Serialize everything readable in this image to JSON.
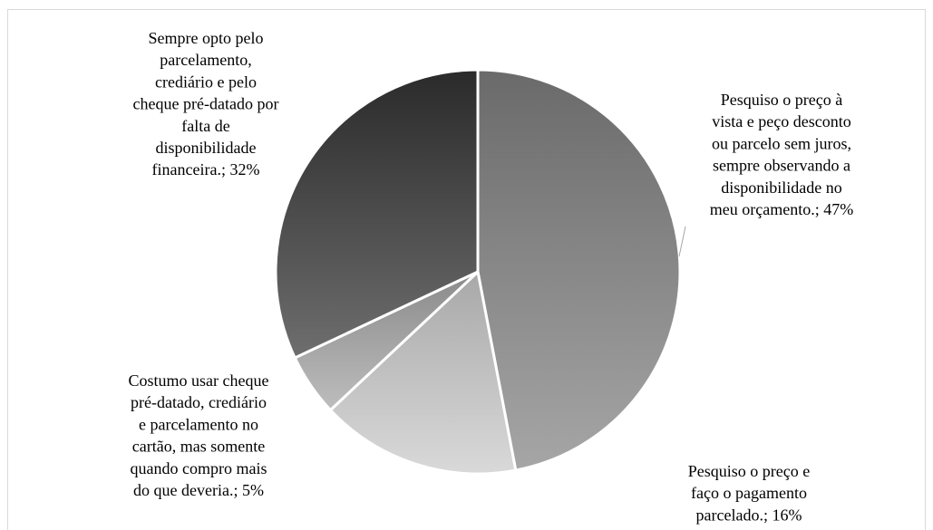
{
  "chart_data": {
    "type": "pie",
    "title": "",
    "slices": [
      {
        "label": "Pesquiso o preço à vista e peço desconto ou parcelo sem juros, sempre observando a disponibilidade no meu orçamento.",
        "value": 47,
        "value_label": "47%",
        "color_top": "#6a6a6a",
        "color_bottom": "#a6a6a6"
      },
      {
        "label": "Pesquiso o preço e faço o pagamento parcelado.",
        "value": 16,
        "value_label": "16%",
        "color_top": "#a8a8a8",
        "color_bottom": "#d9d9d9"
      },
      {
        "label": "Costumo usar cheque pré-datado, crediário e parcelamento no cartão, mas somente quando compro mais do que deveria.",
        "value": 5,
        "value_label": "5%",
        "color_top": "#8a8a8a",
        "color_bottom": "#bdbdbd"
      },
      {
        "label": "Sempre opto pelo parcelamento, crediário e pelo cheque pré-datado por falta de disponibilidade financeira.",
        "value": 32,
        "value_label": "32%",
        "color_top": "#2a2a2a",
        "color_bottom": "#6e6e6e"
      }
    ],
    "data_labels": [
      [
        "Pesquiso o preço à",
        "vista e peço desconto",
        "ou parcelo sem juros,",
        "sempre observando a",
        "disponibilidade no",
        "meu orçamento.; 47%"
      ],
      [
        "Pesquiso o preço e",
        "faço o pagamento",
        "parcelado.; 16%"
      ],
      [
        "Costumo usar cheque",
        "pré-datado, crediário",
        "e parcelamento no",
        "cartão, mas somente",
        "quando compro mais",
        "do que deveria.; 5%"
      ],
      [
        "Sempre opto pelo",
        "parcelamento,",
        "crediário e pelo",
        "cheque pré-datado por",
        "falta de",
        "disponibilidade",
        "financeira.; 32%"
      ]
    ],
    "start_angle": "12 o'clock",
    "direction": "clockwise",
    "legend": "none",
    "slice_border_color": "#ffffff"
  }
}
